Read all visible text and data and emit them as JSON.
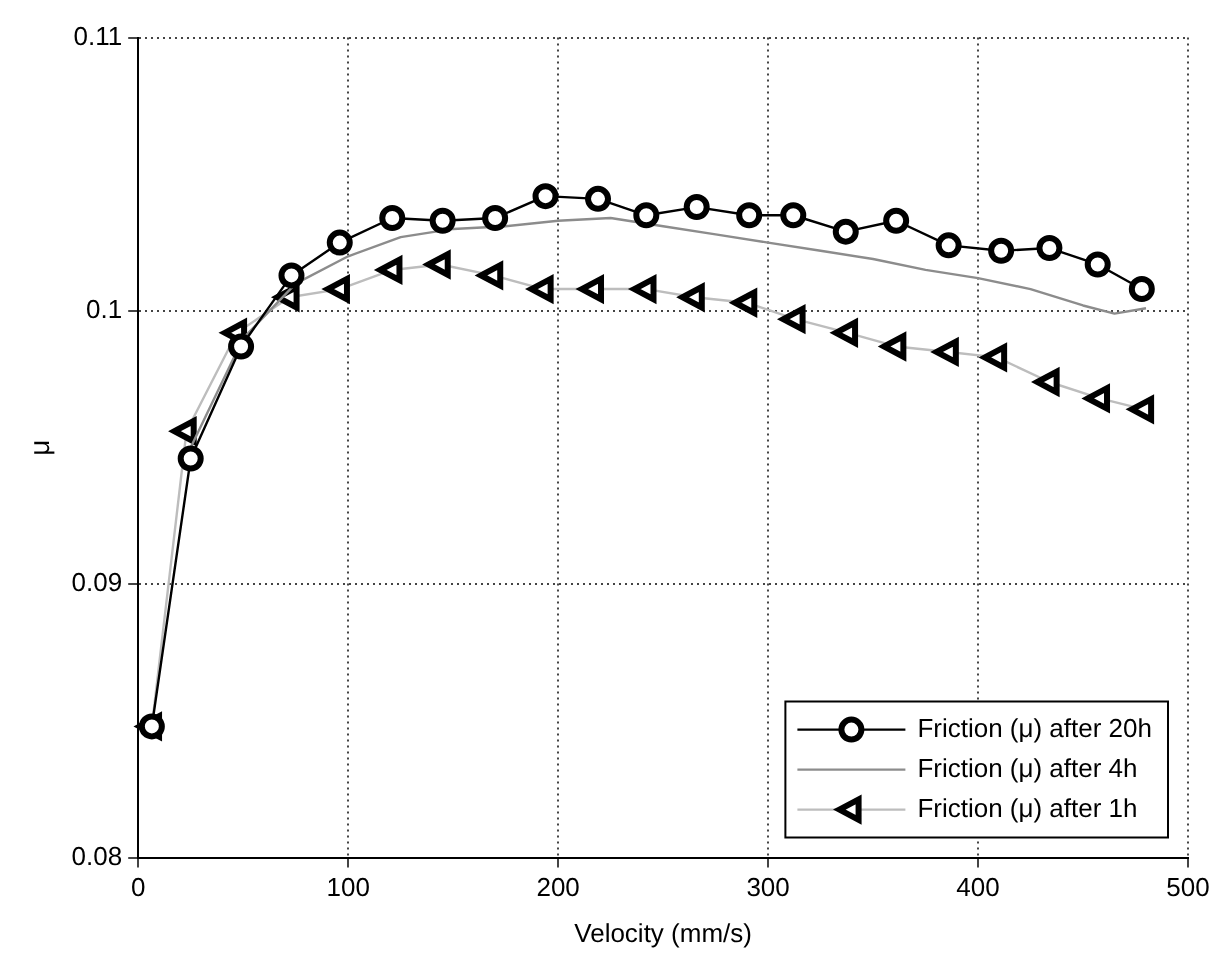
{
  "chart_data": {
    "type": "line",
    "xlabel": "Velocity (mm/s)",
    "ylabel": "μ",
    "xlim": [
      0,
      500
    ],
    "xticks": [
      0,
      100,
      200,
      300,
      400,
      500
    ],
    "ylim": [
      0.08,
      0.11
    ],
    "yticks": [
      0.08,
      0.09,
      0.1,
      0.11
    ],
    "grid": true,
    "legend": "bottom right",
    "line_style": "solid",
    "series": [
      {
        "name": "Friction (μ) after 20h",
        "color": "#000000",
        "marker": "circle",
        "x": [
          6.5,
          25,
          49,
          73,
          96,
          121,
          145,
          170,
          194,
          219,
          242,
          266,
          291,
          312,
          337,
          361,
          386,
          411,
          434,
          457,
          478
        ],
        "values": [
          0.0848,
          0.0946,
          0.0987,
          0.1013,
          0.1025,
          0.1034,
          0.1033,
          0.1034,
          0.1042,
          0.1041,
          0.1035,
          0.1038,
          0.1035,
          0.1035,
          0.1029,
          0.1033,
          0.1024,
          0.1022,
          0.1023,
          0.1017,
          0.1008
        ]
      },
      {
        "name": "Friction (μ) after 4h",
        "color": "#8c8c8c",
        "marker": "none",
        "x": [
          25,
          50,
          75,
          100,
          125,
          150,
          175,
          200,
          225,
          250,
          275,
          300,
          325,
          350,
          375,
          400,
          425,
          450,
          465,
          480
        ],
        "values": [
          0.095,
          0.099,
          0.101,
          0.102,
          0.1027,
          0.103,
          0.1031,
          0.1033,
          0.1034,
          0.1031,
          0.1028,
          0.1025,
          0.1022,
          0.1019,
          0.1015,
          0.1012,
          0.1008,
          0.1002,
          0.0999,
          0.1001
        ]
      },
      {
        "name": "Friction (μ) after 1h",
        "color": "#bdbdbd",
        "marker": "triangle",
        "x": [
          6.5,
          23,
          47,
          72,
          96,
          121,
          144,
          169,
          193,
          217,
          242,
          265,
          290,
          313,
          338,
          361,
          386,
          409,
          434,
          458,
          479
        ],
        "values": [
          0.0848,
          0.0956,
          0.0992,
          0.1005,
          0.1008,
          0.1015,
          0.1017,
          0.1013,
          0.1008,
          0.1008,
          0.1008,
          0.1005,
          0.1003,
          0.0997,
          0.0992,
          0.0987,
          0.0985,
          0.0983,
          0.0974,
          0.0968,
          0.0964
        ]
      }
    ]
  }
}
